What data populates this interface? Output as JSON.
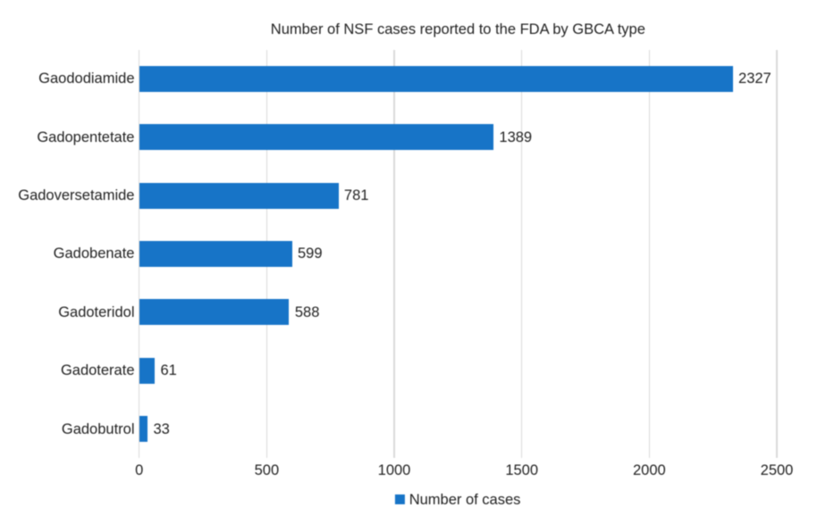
{
  "chart_data": {
    "type": "bar",
    "orientation": "horizontal",
    "title": "Number of NSF cases reported to the FDA by GBCA type",
    "categories": [
      "Gaododiamide",
      "Gadopentetate",
      "Gadoversetamide",
      "Gadobenate",
      "Gadoteridol",
      "Gadoterate",
      "Gadobutrol"
    ],
    "values": [
      2327,
      1389,
      781,
      599,
      588,
      61,
      33
    ],
    "value_labels": [
      "2327",
      "1389",
      "781",
      "599",
      "588",
      "61",
      "33"
    ],
    "x_ticks": [
      0,
      500,
      1000,
      1500,
      2000,
      2500
    ],
    "x_tick_labels": [
      "0",
      "500",
      "1000",
      "1500",
      "2000",
      "2500"
    ],
    "xlim": [
      0,
      2500
    ],
    "xlabel": "",
    "ylabel": "",
    "grid": "vertical-only",
    "legend": {
      "position": "bottom-center",
      "entries": [
        "Number of cases"
      ]
    },
    "bar_color": "#1774c7",
    "gridline_color": "#d9d9d9",
    "text_color": "#222222",
    "background_color": "#ffffff"
  },
  "legend": {
    "label": "Number of cases"
  }
}
